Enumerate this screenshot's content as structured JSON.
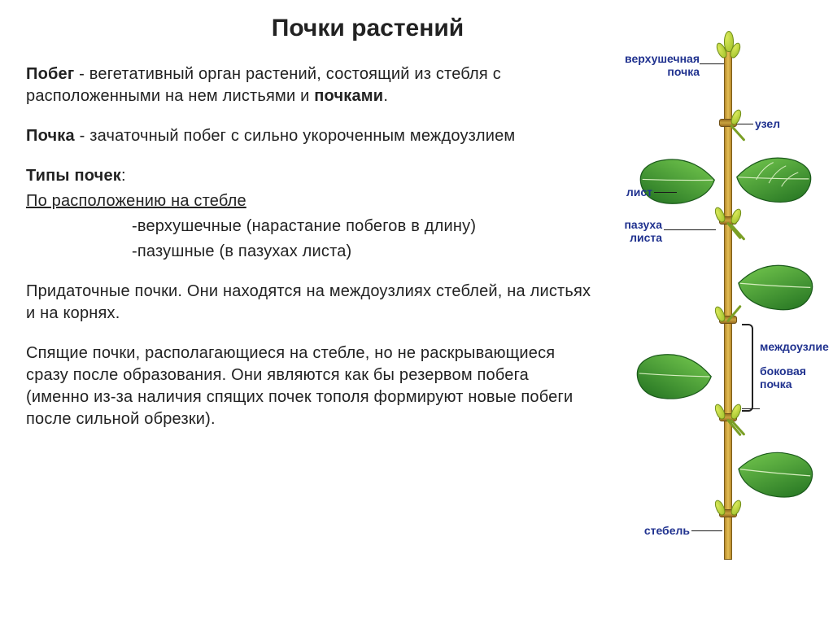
{
  "title": "Почки растений",
  "p1_lead": "Побег",
  "p1_rest": " - вегетативный орган растений, состоящий из стебля с расположенными на нем листьями и ",
  "p1_bold2": "почками",
  "p1_tail": ".",
  "p2_lead": "Почка",
  "p2_rest": " - зачаточный побег с сильно укороченным междоузлием",
  "types_head": "Типы почек",
  "types_tail": ":",
  "loc_heading": "По расположению на стебле",
  "loc_item1": "-верхушечные (нарастание побегов в длину)",
  "loc_item2": "-пазушные (в пазухах листа)",
  "advent": "Придаточные почки. Они находятся на междоузлиях стеблей, на листьях и на корнях.",
  "dormant": "Спящие почки, располагающиеся на стебле, но не раскрывающиеся сразу после образования. Они являются как бы резервом побега (именно из-за наличия спящих почек тополя формируют новые побеги после сильной обрезки).",
  "labels": {
    "apical": "верхушечная\nпочка",
    "node": "узел",
    "leaf": "лист",
    "axil": "пазуха\nлиста",
    "internode": "междоузлие",
    "lateral": "боковая\nпочка",
    "stem": "стебель"
  },
  "colors": {
    "label": "#20328f",
    "leaf_fill": "#3fa03a",
    "leaf_dark": "#1f6e1f",
    "leaf_light": "#7bcf52"
  }
}
